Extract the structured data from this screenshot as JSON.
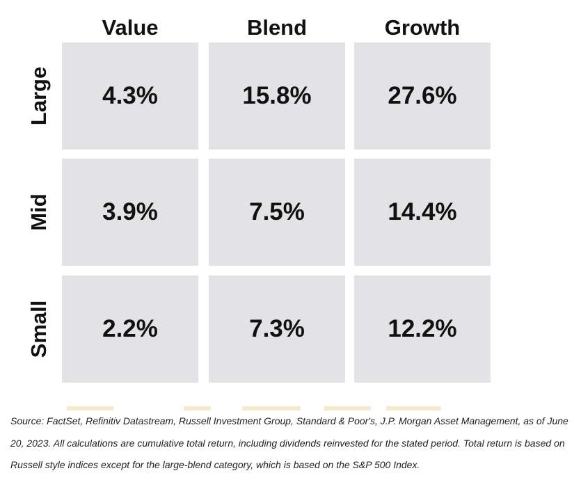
{
  "chart_data": {
    "type": "table",
    "columns": [
      "Value",
      "Blend",
      "Growth"
    ],
    "rows": [
      "Large",
      "Mid",
      "Small"
    ],
    "values": [
      [
        "4.3%",
        "15.8%",
        "27.6%"
      ],
      [
        "3.9%",
        "7.5%",
        "14.4%"
      ],
      [
        "2.2%",
        "7.3%",
        "12.2%"
      ]
    ],
    "cell_color": "#e3e3e5"
  },
  "source_note": "Source: FactSet, Refinitiv Datastream, Russell Investment Group, Standard & Poor's, J.P. Morgan Asset Management, as of June 20, 2023. All calculations are cumulative total return, including dividends reinvested for the stated period. Total return is based on Russell style indices except for the large-blend category, which is based on the S&P 500 Index."
}
